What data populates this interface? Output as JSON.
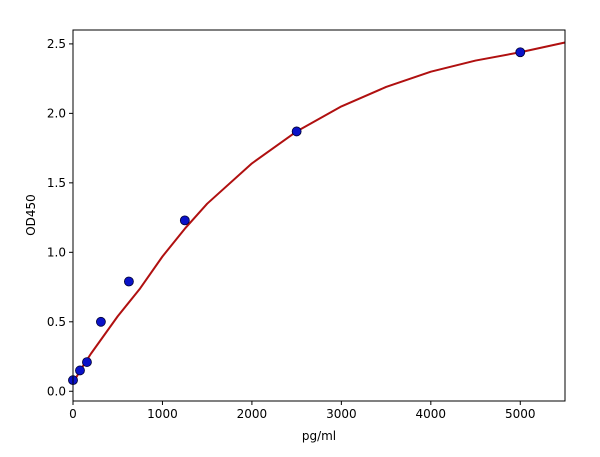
{
  "chart_data": {
    "type": "scatter",
    "title": "",
    "xlabel": "pg/ml",
    "ylabel": "OD450",
    "xlim": [
      0,
      5500
    ],
    "ylim": [
      -0.07,
      2.6
    ],
    "xticks": [
      0,
      1000,
      2000,
      3000,
      4000,
      5000
    ],
    "yticks": [
      0.0,
      0.5,
      1.0,
      1.5,
      2.0,
      2.5
    ],
    "xtick_labels": [
      "0",
      "1000",
      "2000",
      "3000",
      "4000",
      "5000"
    ],
    "ytick_labels": [
      "0.0",
      "0.5",
      "1.0",
      "1.5",
      "2.0",
      "2.5"
    ],
    "grid": false,
    "legend": "none",
    "series": [
      {
        "kind": "points",
        "x": [
          0,
          78,
          156,
          312,
          625,
          1250,
          2500,
          5000
        ],
        "y": [
          0.08,
          0.15,
          0.21,
          0.5,
          0.79,
          1.23,
          1.87,
          2.44
        ],
        "color": "#0a12c8"
      },
      {
        "kind": "fit-curve",
        "x": [
          0,
          100,
          200,
          300,
          400,
          500,
          750,
          1000,
          1250,
          1500,
          2000,
          2500,
          3000,
          3500,
          4000,
          4500,
          5000,
          5500
        ],
        "y": [
          0.06,
          0.17,
          0.27,
          0.36,
          0.45,
          0.54,
          0.74,
          0.97,
          1.17,
          1.35,
          1.64,
          1.87,
          2.05,
          2.19,
          2.3,
          2.38,
          2.44,
          2.51
        ],
        "color": "#b01010"
      }
    ]
  }
}
